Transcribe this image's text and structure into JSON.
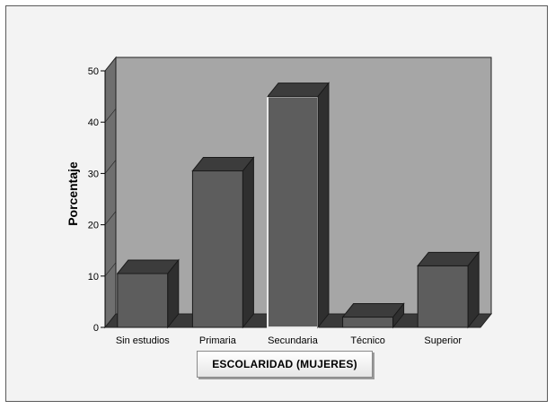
{
  "chart_data": {
    "type": "bar",
    "title": "",
    "xlabel": "ESCOLARIDAD (MUJERES)",
    "ylabel": "Porcentaje",
    "ylim": [
      0,
      50
    ],
    "yticks": [
      0,
      10,
      20,
      30,
      40,
      50
    ],
    "categories": [
      "Sin estudios",
      "Primaria",
      "Secundaria",
      "Técnico",
      "Superior"
    ],
    "values": [
      10.5,
      30.5,
      45,
      2,
      12
    ],
    "highlighted_category": "Secundaria",
    "grid": false,
    "colors": {
      "bar_front": "#5d5d5d",
      "bar_top": "#3c3c3c",
      "bar_side": "#2f2f2f",
      "back_wall": "#a6a6a6",
      "left_wall": "#6f6f6f",
      "floor": "#3a3a3a"
    }
  }
}
